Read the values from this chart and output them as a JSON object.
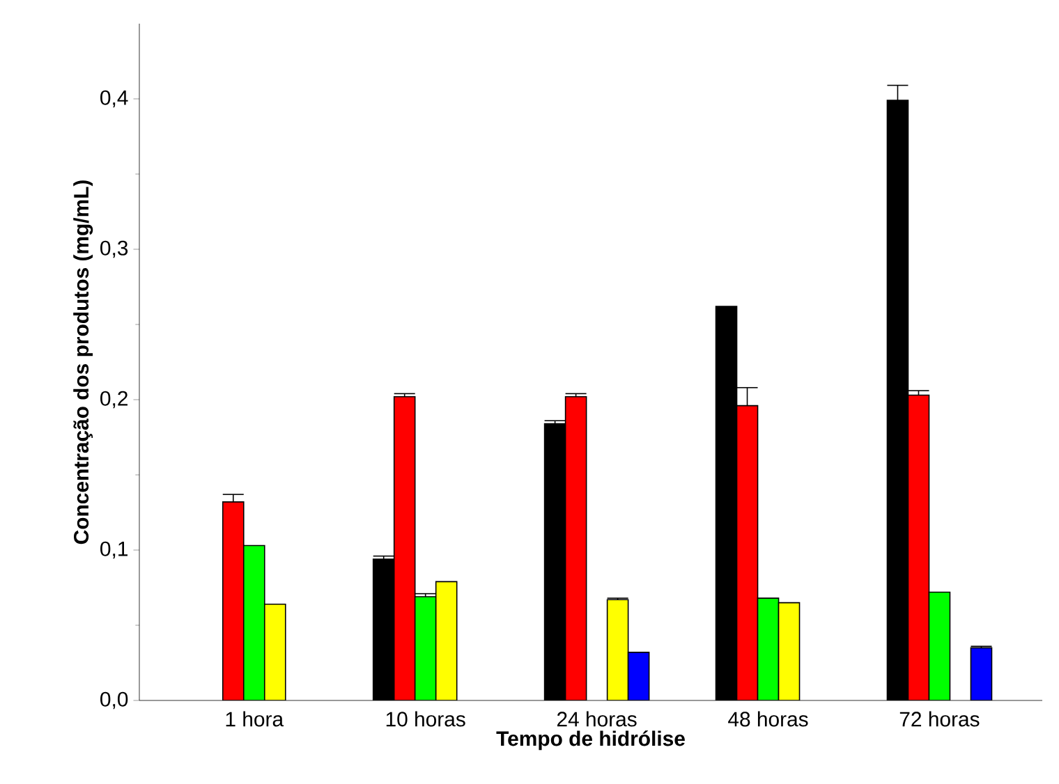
{
  "chart_data": {
    "type": "bar",
    "xlabel": "Tempo de hidrólise",
    "ylabel": "Concentração dos produtos (mg/mL)",
    "categories": [
      "1 hora",
      "10 horas",
      "24 horas",
      "48 horas",
      "72 horas"
    ],
    "series": [
      {
        "color": "#000000",
        "values": [
          null,
          0.094,
          0.184,
          0.262,
          0.399
        ],
        "errors": [
          null,
          [
            0.094,
            0.096
          ],
          [
            0.184,
            0.186
          ],
          null,
          [
            0.399,
            0.409
          ]
        ]
      },
      {
        "color": "#ff0000",
        "values": [
          0.132,
          0.202,
          0.202,
          0.196,
          0.203
        ],
        "errors": [
          [
            0.132,
            0.137
          ],
          [
            0.202,
            0.204
          ],
          [
            0.202,
            0.204
          ],
          [
            0.196,
            0.208
          ],
          [
            0.203,
            0.206
          ]
        ]
      },
      {
        "color": "#00ff00",
        "values": [
          0.103,
          0.069,
          null,
          0.068,
          0.072
        ],
        "errors": [
          null,
          [
            0.069,
            0.071
          ],
          null,
          null,
          null
        ]
      },
      {
        "color": "#ffff00",
        "values": [
          0.064,
          0.079,
          0.067,
          0.065,
          null
        ],
        "errors": [
          null,
          null,
          [
            0.067,
            0.068
          ],
          null,
          null
        ]
      },
      {
        "color": "#0000ff",
        "values": [
          null,
          null,
          0.032,
          null,
          0.035
        ],
        "errors": [
          null,
          null,
          null,
          null,
          [
            0.035,
            0.036
          ]
        ]
      }
    ],
    "ylim": [
      0,
      0.45
    ],
    "yticks": [
      {
        "value": 0,
        "label": "0,0"
      },
      {
        "value": 0.1,
        "label": "0,1"
      },
      {
        "value": 0.2,
        "label": "0,2"
      },
      {
        "value": 0.3,
        "label": "0,3"
      },
      {
        "value": 0.4,
        "label": "0,4"
      }
    ],
    "grid": false
  }
}
